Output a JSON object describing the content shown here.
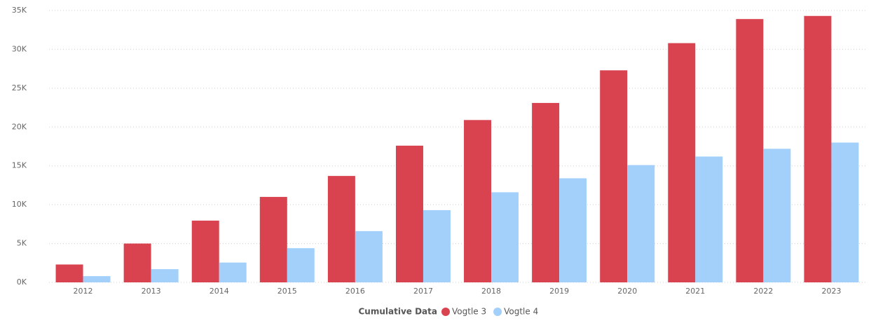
{
  "chart_data": {
    "type": "bar",
    "categories": [
      "2012",
      "2013",
      "2014",
      "2015",
      "2016",
      "2017",
      "2018",
      "2019",
      "2020",
      "2021",
      "2022",
      "2023"
    ],
    "legend_title": "Cumulative Data",
    "series": [
      {
        "name": "Vogtle 3",
        "color": "#d9434f",
        "values": [
          2300,
          5000,
          7950,
          11000,
          13700,
          17600,
          20900,
          23100,
          27300,
          30800,
          33900,
          34300
        ]
      },
      {
        "name": "Vogtle 4",
        "color": "#a2d0fb",
        "values": [
          800,
          1700,
          2550,
          4400,
          6600,
          9300,
          11600,
          13400,
          15100,
          16200,
          17200,
          18000
        ]
      }
    ],
    "ylim": [
      0,
      35000
    ],
    "yticks": [
      {
        "value": 0,
        "label": "0K"
      },
      {
        "value": 5000,
        "label": "5K"
      },
      {
        "value": 10000,
        "label": "10K"
      },
      {
        "value": 15000,
        "label": "15K"
      },
      {
        "value": 20000,
        "label": "20K"
      },
      {
        "value": 25000,
        "label": "25K"
      },
      {
        "value": 30000,
        "label": "30K"
      },
      {
        "value": 35000,
        "label": "35K"
      }
    ],
    "grid": true,
    "legend": "bottom"
  }
}
